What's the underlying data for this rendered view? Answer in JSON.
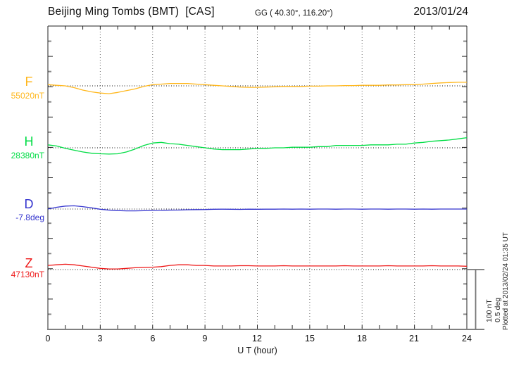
{
  "header": {
    "station": "Beijing Ming Tombs (BMT)  [CAS]",
    "geo": "GG ( 40.30°, 116.20°)",
    "date": "2013/01/24"
  },
  "chart_data": {
    "type": "line",
    "title": "Beijing Ming Tombs (BMT)  [CAS]",
    "xlabel": "U T (hour)",
    "x_range": [
      0,
      24
    ],
    "x_tick_labels": [
      "0",
      "3",
      "6",
      "9",
      "12",
      "15",
      "18",
      "21",
      "24"
    ],
    "grid_hours": [
      3,
      6,
      9,
      12,
      15,
      18,
      21
    ],
    "legend_position": "left-of-each-trace",
    "grid": "dotted-vertical-every-3h, dotted-baseline-per-trace",
    "x_hours": [
      0,
      0.5,
      1,
      1.5,
      2,
      2.5,
      3,
      3.5,
      4,
      4.5,
      5,
      5.5,
      6,
      6.5,
      7,
      7.5,
      8,
      8.5,
      9,
      9.5,
      10,
      10.5,
      11,
      11.5,
      12,
      12.5,
      13,
      13.5,
      14,
      14.5,
      15,
      15.5,
      16,
      16.5,
      17,
      17.5,
      18,
      18.5,
      19,
      19.5,
      20,
      20.5,
      21,
      21.5,
      22,
      22.5,
      23,
      23.5,
      24
    ],
    "series": [
      {
        "name": "F",
        "unit": "nT",
        "base": 55020,
        "baseline_label": "55020nT",
        "color": "#FFB71C",
        "values": [
          55022,
          55021,
          55020,
          55017,
          55013,
          55010,
          55008,
          55007,
          55009,
          55012,
          55015,
          55019,
          55022,
          55023,
          55024,
          55024,
          55024,
          55023,
          55022,
          55021,
          55020,
          55019,
          55018,
          55017.5,
          55017.5,
          55018,
          55018.5,
          55019,
          55019,
          55019,
          55019.5,
          55019.5,
          55020,
          55020,
          55020.5,
          55020.5,
          55021,
          55021,
          55021,
          55021.5,
          55021.5,
          55022,
          55022,
          55023,
          55024,
          55025,
          55025.5,
          55026,
          55026
        ]
      },
      {
        "name": "H",
        "unit": "nT",
        "base": 28380,
        "baseline_label": "28380nT",
        "color": "#00DD44",
        "values": [
          28385,
          28383,
          28379,
          28376,
          28373,
          28371,
          28370,
          28369.5,
          28370,
          28373,
          28378,
          28384,
          28388,
          28389,
          28387,
          28386,
          28384,
          28382,
          28380,
          28378,
          28377,
          28377,
          28377,
          28378,
          28379,
          28379,
          28380,
          28380,
          28381,
          28381,
          28381,
          28382,
          28382,
          28384,
          28384,
          28384,
          28384,
          28385,
          28385,
          28385,
          28386,
          28386,
          28388,
          28389,
          28391,
          28392,
          28393,
          28395,
          28397
        ]
      },
      {
        "name": "D",
        "unit": "deg",
        "base": -7.8,
        "baseline_label": "-7.8deg",
        "color": "#3333CE",
        "values": [
          -7.8,
          -7.785,
          -7.775,
          -7.773,
          -7.78,
          -7.79,
          -7.802,
          -7.809,
          -7.813,
          -7.815,
          -7.815,
          -7.814,
          -7.812,
          -7.811,
          -7.809,
          -7.808,
          -7.806,
          -7.805,
          -7.804,
          -7.802,
          -7.801,
          -7.802,
          -7.803,
          -7.801,
          -7.802,
          -7.801,
          -7.801,
          -7.8,
          -7.801,
          -7.8,
          -7.801,
          -7.8,
          -7.8,
          -7.801,
          -7.8,
          -7.8,
          -7.801,
          -7.8,
          -7.8,
          -7.801,
          -7.8,
          -7.8,
          -7.801,
          -7.8,
          -7.801,
          -7.8,
          -7.8,
          -7.8,
          -7.8
        ]
      },
      {
        "name": "Z",
        "unit": "nT",
        "base": 47130,
        "baseline_label": "47130nT",
        "color": "#EE1818",
        "values": [
          47137,
          47138,
          47139,
          47138,
          47136,
          47134,
          47132,
          47131,
          47131,
          47132,
          47133,
          47133.5,
          47134,
          47135,
          47137,
          47138,
          47138,
          47137,
          47137,
          47136,
          47136,
          47136,
          47136.5,
          47136.5,
          47136,
          47136,
          47136,
          47136.5,
          47136,
          47136,
          47136,
          47136,
          47136,
          47136,
          47136.5,
          47136,
          47136,
          47136,
          47136,
          47136.5,
          47136,
          47136,
          47136,
          47136,
          47136.5,
          47136,
          47136,
          47136,
          47135.5
        ]
      }
    ],
    "scale_bar": {
      "nt_label": "100 nT",
      "deg_label": "0.5 deg",
      "nt_span": 100,
      "deg_span": 0.5
    },
    "plotted_at": "Plotted at 2013/02/24 01:35 UT"
  }
}
